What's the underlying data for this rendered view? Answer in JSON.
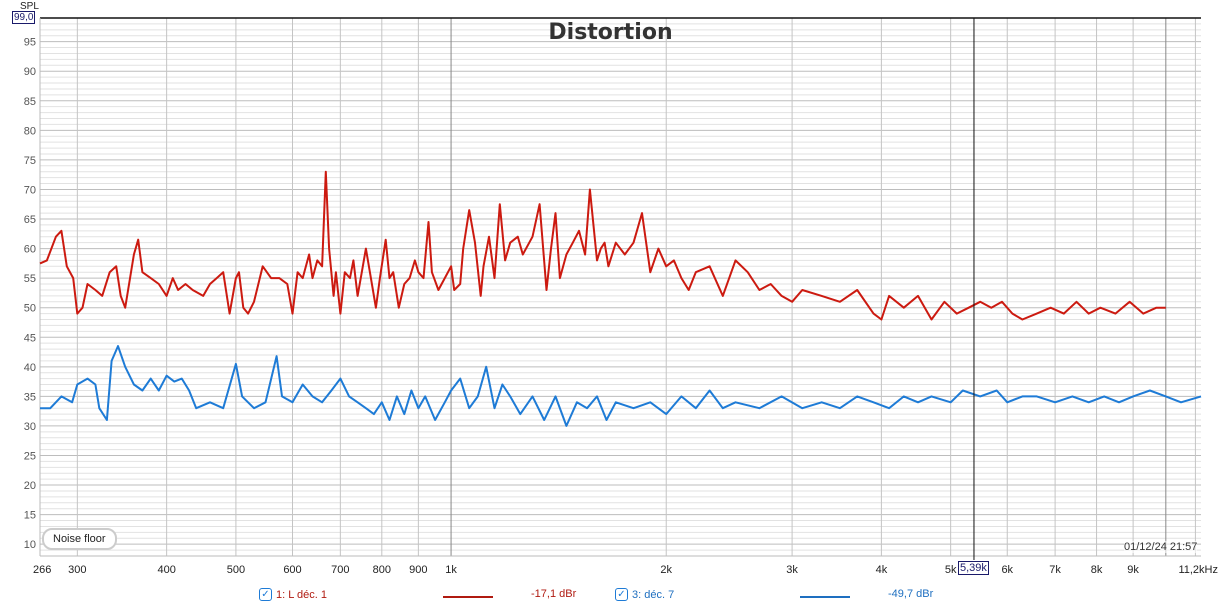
{
  "chart_data": {
    "type": "line",
    "title": "Distortion",
    "ylabel": "SPL",
    "xlabel": "kHz",
    "xscale": "log",
    "xlim": [
      266,
      11200
    ],
    "ylim": [
      8,
      99
    ],
    "y_ticks": [
      10,
      15,
      20,
      25,
      30,
      35,
      40,
      45,
      50,
      55,
      60,
      65,
      70,
      75,
      80,
      85,
      90,
      95
    ],
    "y_tick_labels": [
      "10",
      "15",
      "20",
      "25",
      "30",
      "35",
      "40",
      "45",
      "50",
      "55",
      "60",
      "65",
      "70",
      "75",
      "80",
      "85",
      "90",
      "95"
    ],
    "x_ticks": [
      266,
      300,
      400,
      500,
      600,
      700,
      800,
      900,
      1000,
      2000,
      3000,
      4000,
      5000,
      6000,
      7000,
      8000,
      9000,
      11200
    ],
    "x_tick_labels": [
      "266",
      "300",
      "400",
      "500",
      "600",
      "700",
      "800",
      "900",
      "1k",
      "2k",
      "3k",
      "4k",
      "5k",
      "6k",
      "7k",
      "8k",
      "9k",
      "11,2kHz"
    ],
    "grid": true,
    "cursor": {
      "x": 5390,
      "x_label": "5,39k",
      "y_label": "99,0"
    },
    "timestamp": "01/12/24 21:57",
    "series": [
      {
        "name": "1: L déc. 1",
        "color": "#cc1a10",
        "level": "-17,1 dBr",
        "x": [
          266,
          272,
          280,
          285,
          290,
          296,
          300,
          305,
          310,
          318,
          325,
          333,
          340,
          345,
          350,
          360,
          365,
          370,
          380,
          390,
          400,
          408,
          415,
          425,
          435,
          450,
          460,
          470,
          480,
          490,
          500,
          505,
          512,
          520,
          530,
          545,
          560,
          575,
          590,
          600,
          610,
          620,
          633,
          640,
          650,
          660,
          668,
          675,
          685,
          690,
          700,
          710,
          722,
          730,
          740,
          750,
          760,
          770,
          785,
          795,
          810,
          820,
          830,
          845,
          860,
          875,
          890,
          900,
          915,
          930,
          940,
          960,
          980,
          1000,
          1010,
          1030,
          1040,
          1060,
          1080,
          1100,
          1110,
          1130,
          1150,
          1170,
          1190,
          1210,
          1240,
          1260,
          1300,
          1330,
          1360,
          1380,
          1400,
          1420,
          1450,
          1480,
          1510,
          1540,
          1564,
          1600,
          1620,
          1640,
          1660,
          1700,
          1750,
          1800,
          1850,
          1900,
          1950,
          2000,
          2050,
          2100,
          2150,
          2200,
          2300,
          2400,
          2500,
          2600,
          2700,
          2800,
          2900,
          3000,
          3100,
          3300,
          3500,
          3700,
          3900,
          4000,
          4100,
          4300,
          4500,
          4700,
          4900,
          5100,
          5300,
          5500,
          5700,
          5900,
          6100,
          6300,
          6600,
          6900,
          7200,
          7500,
          7800,
          8100,
          8500,
          8900,
          9300,
          9700,
          10000
        ],
        "y": [
          57.5,
          58,
          62,
          63,
          57,
          55,
          49,
          50,
          54,
          53,
          52,
          56,
          57,
          52,
          50,
          59,
          61.5,
          56,
          55,
          54,
          52,
          55,
          53,
          54,
          53,
          52,
          54,
          55,
          56,
          49,
          55,
          56,
          50,
          49,
          51,
          57,
          55,
          55,
          54,
          49,
          56,
          55,
          59,
          55,
          58,
          57,
          73,
          60,
          52,
          56,
          49,
          56,
          55,
          58,
          52,
          56,
          60,
          56,
          50,
          55,
          61.5,
          55,
          56,
          50,
          54,
          55,
          58,
          56,
          55,
          64.5,
          56,
          53,
          55,
          57,
          53,
          54,
          60,
          66.5,
          61,
          52,
          57,
          62,
          55,
          67.5,
          58,
          61,
          62,
          59,
          62,
          67.5,
          53,
          60,
          66,
          55,
          59,
          61,
          63,
          59,
          70,
          58,
          60,
          61,
          57,
          61,
          59,
          61,
          66,
          56,
          60,
          57,
          58,
          55,
          53,
          56,
          57,
          52,
          58,
          56,
          53,
          54,
          52,
          51,
          53,
          52,
          51,
          53,
          49,
          48,
          52,
          50,
          52,
          48,
          51,
          49,
          50,
          51,
          50,
          51,
          49,
          48,
          49,
          50,
          49,
          51,
          49,
          50,
          49,
          51,
          49,
          50,
          50
        ]
      },
      {
        "name": "3: déc. 7",
        "color": "#1e7bd6",
        "level": "-49,7 dBr",
        "x": [
          266,
          275,
          285,
          295,
          300,
          310,
          318,
          322,
          330,
          335,
          342,
          350,
          360,
          370,
          380,
          390,
          400,
          410,
          420,
          430,
          440,
          460,
          480,
          500,
          510,
          530,
          550,
          570,
          580,
          600,
          620,
          640,
          660,
          680,
          700,
          720,
          740,
          760,
          780,
          800,
          820,
          840,
          860,
          880,
          900,
          920,
          950,
          980,
          1000,
          1030,
          1060,
          1090,
          1120,
          1150,
          1180,
          1210,
          1250,
          1300,
          1350,
          1400,
          1450,
          1500,
          1550,
          1600,
          1650,
          1700,
          1800,
          1900,
          2000,
          2100,
          2200,
          2300,
          2400,
          2500,
          2700,
          2900,
          3100,
          3300,
          3500,
          3700,
          3900,
          4100,
          4300,
          4500,
          4700,
          5000,
          5200,
          5500,
          5800,
          6000,
          6300,
          6600,
          7000,
          7400,
          7800,
          8200,
          8600,
          9000,
          9500,
          10000,
          10500,
          11200
        ],
        "y": [
          33,
          33,
          35,
          34,
          37,
          38,
          37,
          33,
          31,
          41,
          43.5,
          40,
          37,
          36,
          38,
          36,
          38.5,
          37.5,
          38,
          36,
          33,
          34,
          33,
          40.5,
          35,
          33,
          34,
          41.8,
          35,
          34,
          37,
          35,
          34,
          36,
          38,
          35,
          34,
          33,
          32,
          34,
          31,
          35,
          32,
          36,
          33,
          35,
          31,
          34,
          36,
          38,
          33,
          35,
          40,
          33,
          37,
          35,
          32,
          35,
          31,
          35,
          30,
          34,
          33,
          35,
          31,
          34,
          33,
          34,
          32,
          35,
          33,
          36,
          33,
          34,
          33,
          35,
          33,
          34,
          33,
          35,
          34,
          33,
          35,
          34,
          35,
          34,
          36,
          35,
          36,
          34,
          35,
          35,
          34,
          35,
          34,
          35,
          34,
          35,
          36,
          35,
          34,
          35
        ]
      }
    ]
  },
  "ui": {
    "noise_floor_button": "Noise floor"
  }
}
